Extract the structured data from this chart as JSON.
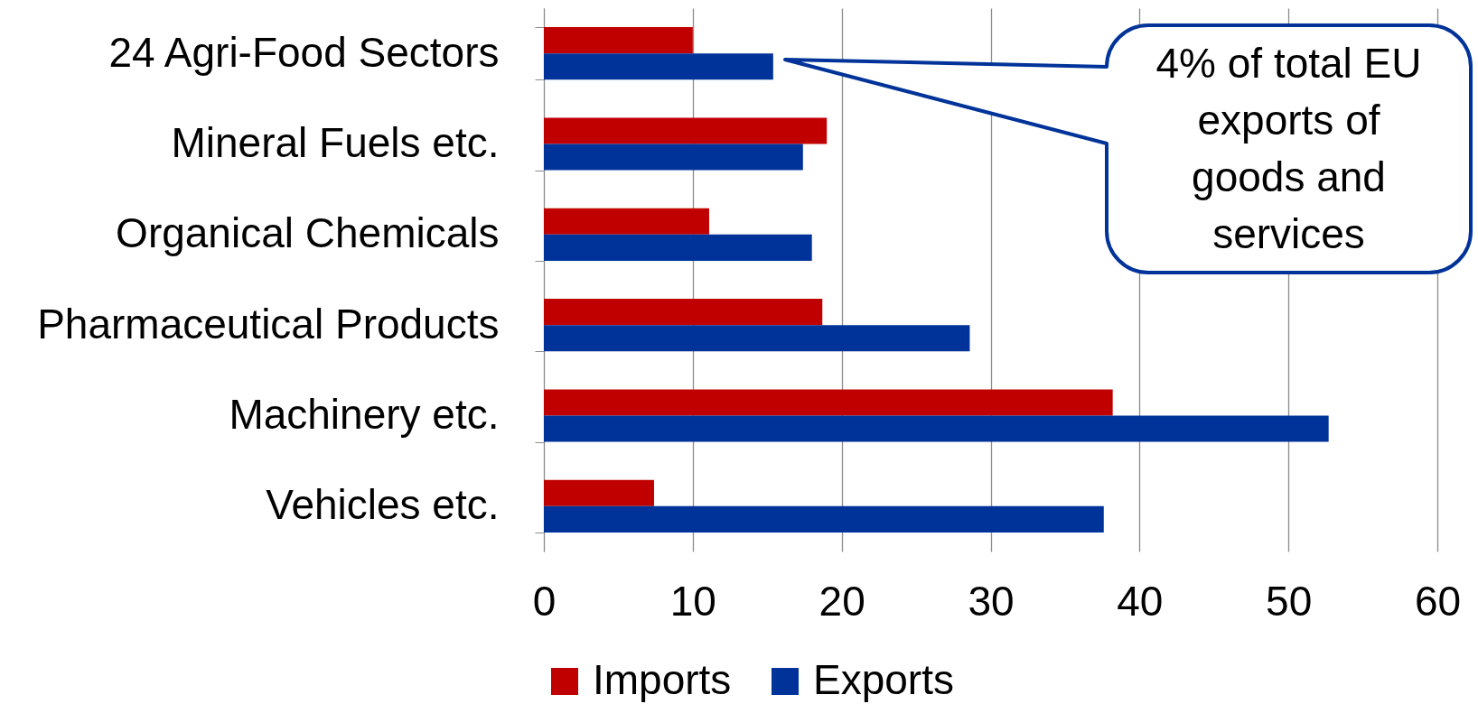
{
  "chart_data": {
    "type": "bar",
    "orientation": "horizontal",
    "categories": [
      "24 Agri-Food Sectors",
      "Mineral Fuels etc.",
      "Organical Chemicals",
      "Pharmaceutical Products",
      "Machinery etc.",
      "Vehicles etc."
    ],
    "series": [
      {
        "name": "Imports",
        "color": "#c00000",
        "values": [
          10.0,
          19.0,
          11.1,
          18.7,
          38.2,
          7.4
        ]
      },
      {
        "name": "Exports",
        "color": "#003399",
        "values": [
          15.4,
          17.4,
          18.0,
          28.6,
          52.7,
          37.6
        ]
      }
    ],
    "xlim": [
      0,
      60
    ],
    "xticks": [
      0,
      10,
      20,
      30,
      40,
      50,
      60
    ],
    "grid": "x",
    "legend": "bottom",
    "annotations": [
      "4% of total EU exports of goods and services"
    ]
  }
}
